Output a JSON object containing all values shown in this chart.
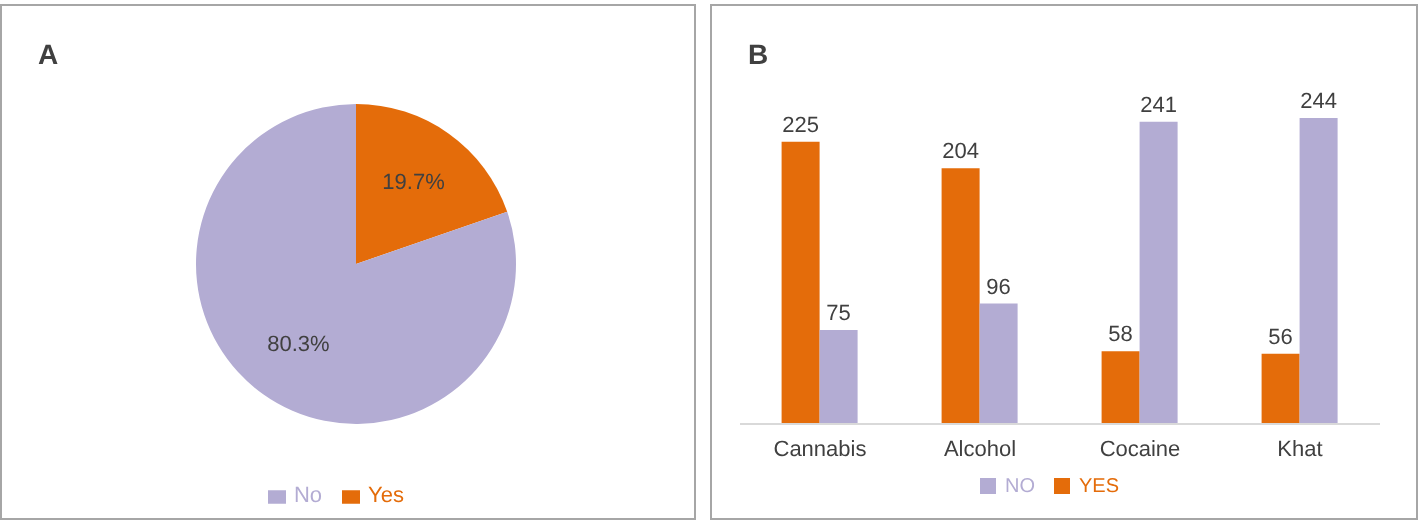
{
  "chart_data": [
    {
      "type": "pie",
      "title": "A",
      "categories": [
        "Yes",
        "No"
      ],
      "values": [
        19.7,
        80.3
      ],
      "colors": [
        "#e46c0a",
        "#b3acd3"
      ],
      "value_labels": [
        "19.7%",
        "80.3%"
      ],
      "legend": "bottom"
    },
    {
      "type": "bar",
      "title": "B",
      "categories": [
        "Cannabis",
        "Alcohol",
        "Cocaine",
        "Khat"
      ],
      "series": [
        {
          "name": "YES",
          "color": "#e46c0a",
          "values": [
            225,
            204,
            58,
            56
          ]
        },
        {
          "name": "NO",
          "color": "#b3acd3",
          "values": [
            75,
            96,
            241,
            244
          ]
        }
      ],
      "data_labels": true,
      "legend": "bottom"
    }
  ]
}
